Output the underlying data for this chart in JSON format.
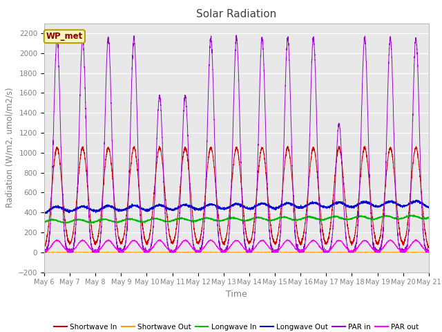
{
  "title": "Solar Radiation",
  "xlabel": "Time",
  "ylabel": "Radiation (W/m2, umol/m2/s)",
  "ylim": [
    -200,
    2300
  ],
  "yticks": [
    -200,
    0,
    200,
    400,
    600,
    800,
    1000,
    1200,
    1400,
    1600,
    1800,
    2000,
    2200
  ],
  "bg_color": "#e8e8e8",
  "fig_color": "#ffffff",
  "legend_label": "WP_met",
  "legend_box_color": "#f5f5c0",
  "legend_box_border": "#b8a000",
  "series_colors": {
    "shortwave_in": "#cc0000",
    "shortwave_out": "#ff9900",
    "longwave_in": "#00bb00",
    "longwave_out": "#0000cc",
    "par_in": "#9900cc",
    "par_out": "#ff00ff"
  },
  "n_days": 15,
  "start_day": 6,
  "pts_per_day": 288,
  "shortwave_in_peak": 1050,
  "par_in_peak": 2150,
  "par_out_peak": 120,
  "longwave_out_base": 375,
  "longwave_in_base": 310,
  "grid_color": "#ffffff",
  "tick_label_color": "#808080"
}
